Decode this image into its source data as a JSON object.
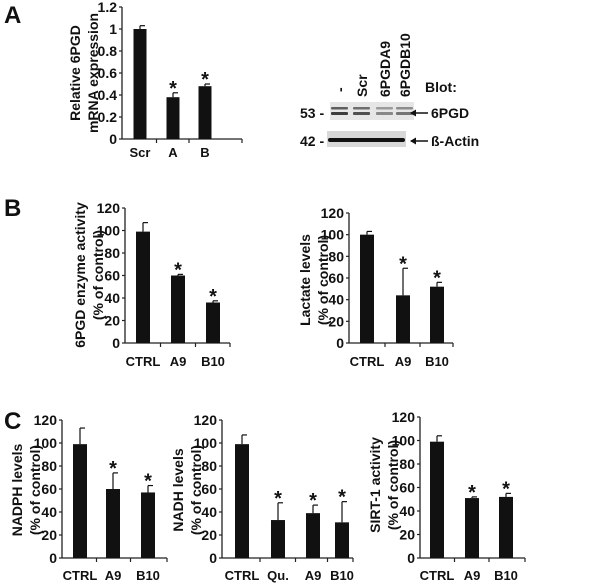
{
  "panel_labels": [
    "A",
    "B",
    "C"
  ],
  "blot": {
    "lanes": [
      "-",
      "Scr",
      "6PGDA9",
      "6PGDB10"
    ],
    "header": "Blot:",
    "markers": [
      "53 -",
      "42 -"
    ],
    "bands": [
      "6PGD",
      "ß-Actin"
    ],
    "band_intensity_6pgd": [
      0.9,
      0.8,
      0.5,
      0.6
    ]
  },
  "chart_data": [
    {
      "type": "bar",
      "panel": "A",
      "ylabel": [
        "Relative 6PGD",
        "mRNA expression"
      ],
      "categories": [
        "Scr",
        "A",
        "B"
      ],
      "values": [
        1.0,
        0.38,
        0.48
      ],
      "errors": [
        0.03,
        0.04,
        0.02
      ],
      "significant": [
        false,
        true,
        true
      ],
      "ylim": [
        0,
        1.2
      ],
      "yticks": [
        "0",
        "0.2",
        "0.4",
        "0.6",
        "0.8",
        "1",
        "1.2"
      ]
    },
    {
      "type": "bar",
      "panel": "B",
      "ylabel": [
        "6PGD enzyme activity",
        "(% of control)"
      ],
      "categories": [
        "CTRL",
        "A9",
        "B10"
      ],
      "values": [
        99,
        60,
        36
      ],
      "errors": [
        8,
        1,
        1.5
      ],
      "significant": [
        false,
        true,
        true
      ],
      "ylim": [
        0,
        120
      ],
      "yticks": [
        "0",
        "20",
        "40",
        "60",
        "80",
        "100",
        "120"
      ]
    },
    {
      "type": "bar",
      "panel": "B",
      "ylabel": [
        "Lactate levels",
        "(% of control)"
      ],
      "categories": [
        "CTRL",
        "A9",
        "B10"
      ],
      "values": [
        100,
        44,
        52
      ],
      "errors": [
        3,
        25,
        4
      ],
      "significant": [
        false,
        true,
        true
      ],
      "ylim": [
        0,
        120
      ],
      "yticks": [
        "0",
        "20",
        "40",
        "60",
        "80",
        "100",
        "120"
      ]
    },
    {
      "type": "bar",
      "panel": "C",
      "ylabel": [
        "NADPH levels",
        "(% of control)"
      ],
      "categories": [
        "CTRL",
        "A9",
        "B10"
      ],
      "values": [
        99,
        60,
        57
      ],
      "errors": [
        14,
        14,
        6
      ],
      "significant": [
        false,
        true,
        true
      ],
      "ylim": [
        0,
        120
      ],
      "yticks": [
        "0",
        "20",
        "40",
        "60",
        "80",
        "100",
        "120"
      ]
    },
    {
      "type": "bar",
      "panel": "C",
      "ylabel": [
        "NADH levels",
        "(% of control)"
      ],
      "categories": [
        "CTRL",
        "Qu.",
        "A9",
        "B10"
      ],
      "values": [
        99,
        33,
        39,
        31
      ],
      "errors": [
        8,
        15,
        7,
        18
      ],
      "significant": [
        false,
        true,
        true,
        true
      ],
      "ylim": [
        0,
        120
      ],
      "yticks": [
        "0",
        "20",
        "40",
        "60",
        "80",
        "100",
        "120"
      ]
    },
    {
      "type": "bar",
      "panel": "C",
      "ylabel": [
        "SIRT-1 activity",
        "(% of control)"
      ],
      "categories": [
        "CTRL",
        "A9",
        "B10"
      ],
      "values": [
        99,
        51,
        52
      ],
      "errors": [
        5,
        1,
        3
      ],
      "significant": [
        false,
        true,
        true
      ],
      "ylim": [
        0,
        120
      ],
      "yticks": [
        "0",
        "20",
        "40",
        "60",
        "80",
        "100",
        "120"
      ]
    }
  ],
  "asterisk": "*",
  "colors": {
    "bar": "#111111",
    "axis": "#222222",
    "blot_bg": "#d8d8d8",
    "band": "#2a2a2a"
  }
}
